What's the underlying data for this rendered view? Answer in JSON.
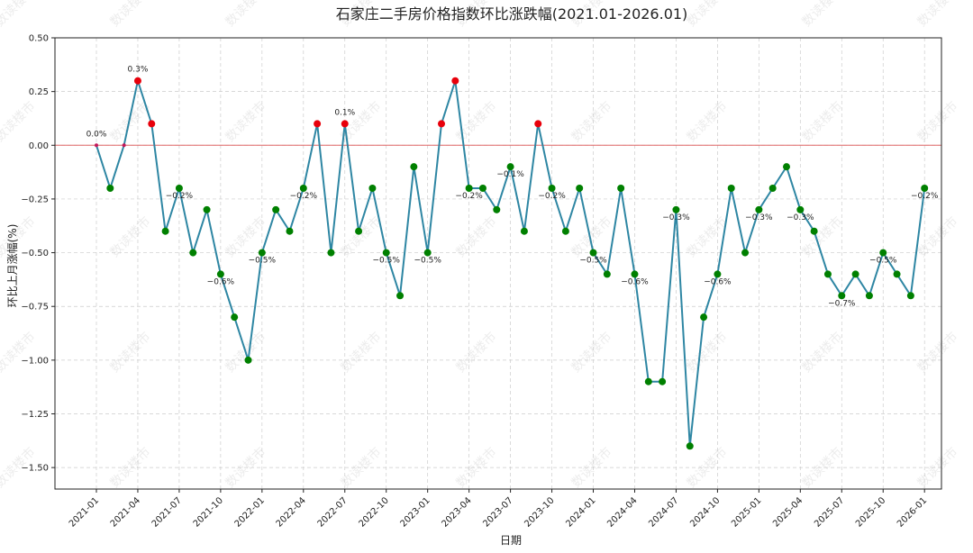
{
  "chart_data": {
    "type": "line",
    "title": "石家庄二手房价格指数环比涨跌幅(2021.01-2026.01)",
    "xlabel": "日期",
    "ylabel": "环比上月涨幅(%)",
    "ylim": [
      -1.6,
      0.5
    ],
    "yticks": [
      0.5,
      0.25,
      0.0,
      -0.25,
      -0.5,
      -0.75,
      -1.0,
      -1.25,
      -1.5
    ],
    "ytick_labels": [
      "0.50",
      "0.25",
      "0.00",
      "−0.25",
      "−0.50",
      "−0.75",
      "−1.00",
      "−1.25",
      "−1.50"
    ],
    "xtick_labels": [
      "2021-01",
      "2021-04",
      "2021-07",
      "2021-10",
      "2022-01",
      "2022-04",
      "2022-07",
      "2022-10",
      "2023-01",
      "2023-04",
      "2023-07",
      "2023-10",
      "2024-01",
      "2024-04",
      "2024-07",
      "2024-10",
      "2025-01",
      "2025-04",
      "2025-07",
      "2025-10",
      "2026-01"
    ],
    "grid": true,
    "reference_line": 0,
    "watermark": "数读楼市",
    "series": [
      {
        "x": [
          "2021-01",
          "2021-02",
          "2021-03",
          "2021-04",
          "2021-05",
          "2021-06",
          "2021-07",
          "2021-08",
          "2021-09",
          "2021-10",
          "2021-11",
          "2021-12",
          "2022-01",
          "2022-02",
          "2022-03",
          "2022-04",
          "2022-05",
          "2022-06",
          "2022-07",
          "2022-08",
          "2022-09",
          "2022-10",
          "2022-11",
          "2022-12",
          "2023-01",
          "2023-02",
          "2023-03",
          "2023-04",
          "2023-05",
          "2023-06",
          "2023-07",
          "2023-08",
          "2023-09",
          "2023-10",
          "2023-11",
          "2023-12",
          "2024-01",
          "2024-02",
          "2024-03",
          "2024-04",
          "2024-05",
          "2024-06",
          "2024-07",
          "2024-08",
          "2024-09",
          "2024-10",
          "2024-11",
          "2024-12",
          "2025-01",
          "2025-02",
          "2025-03",
          "2025-04",
          "2025-05",
          "2025-06",
          "2025-07",
          "2025-08",
          "2025-09",
          "2025-10",
          "2025-11",
          "2025-12",
          "2026-01"
        ],
        "values": [
          0.0,
          -0.2,
          0.0,
          0.3,
          0.1,
          -0.4,
          -0.2,
          -0.5,
          -0.3,
          -0.6,
          -0.8,
          -1.0,
          -0.5,
          -0.3,
          -0.4,
          -0.2,
          0.1,
          -0.5,
          0.1,
          -0.4,
          -0.2,
          -0.5,
          -0.7,
          -0.1,
          -0.5,
          0.1,
          0.3,
          -0.2,
          -0.2,
          -0.3,
          -0.1,
          -0.4,
          0.1,
          -0.2,
          -0.4,
          -0.2,
          -0.5,
          -0.6,
          -0.2,
          -0.6,
          -1.1,
          -1.1,
          -0.3,
          -1.4,
          -0.8,
          -0.6,
          -0.2,
          -0.5,
          -0.3,
          -0.2,
          -0.1,
          -0.3,
          -0.4,
          -0.6,
          -0.7,
          -0.6,
          -0.7,
          -0.5,
          -0.6,
          -0.7,
          -0.2
        ]
      }
    ],
    "data_labels": [
      {
        "x": "2021-01",
        "value": 0.0,
        "text": "0.0%",
        "position": "above"
      },
      {
        "x": "2021-04",
        "value": 0.3,
        "text": "0.3%",
        "position": "above"
      },
      {
        "x": "2021-07",
        "value": -0.2,
        "text": "−0.2%",
        "position": "below"
      },
      {
        "x": "2021-10",
        "value": -0.6,
        "text": "−0.6%",
        "position": "below"
      },
      {
        "x": "2022-01",
        "value": -0.5,
        "text": "−0.5%",
        "position": "below"
      },
      {
        "x": "2022-04",
        "value": -0.2,
        "text": "−0.2%",
        "position": "below"
      },
      {
        "x": "2022-07",
        "value": 0.1,
        "text": "0.1%",
        "position": "above"
      },
      {
        "x": "2022-10",
        "value": -0.5,
        "text": "−0.5%",
        "position": "below"
      },
      {
        "x": "2023-01",
        "value": -0.5,
        "text": "−0.5%",
        "position": "below"
      },
      {
        "x": "2023-04",
        "value": -0.2,
        "text": "−0.2%",
        "position": "below"
      },
      {
        "x": "2023-07",
        "value": -0.1,
        "text": "−0.1%",
        "position": "below"
      },
      {
        "x": "2023-10",
        "value": -0.2,
        "text": "−0.2%",
        "position": "below"
      },
      {
        "x": "2024-01",
        "value": -0.5,
        "text": "−0.5%",
        "position": "below"
      },
      {
        "x": "2024-04",
        "value": -0.6,
        "text": "−0.6%",
        "position": "below"
      },
      {
        "x": "2024-07",
        "value": -0.3,
        "text": "−0.3%",
        "position": "below"
      },
      {
        "x": "2024-10",
        "value": -0.6,
        "text": "−0.6%",
        "position": "below"
      },
      {
        "x": "2025-01",
        "value": -0.3,
        "text": "−0.3%",
        "position": "below"
      },
      {
        "x": "2025-04",
        "value": -0.3,
        "text": "−0.3%",
        "position": "below"
      },
      {
        "x": "2025-07",
        "value": -0.7,
        "text": "−0.7%",
        "position": "below"
      },
      {
        "x": "2025-10",
        "value": -0.5,
        "text": "−0.5%",
        "position": "below"
      },
      {
        "x": "2026-01",
        "value": -0.2,
        "text": "−0.2%",
        "position": "below"
      }
    ],
    "colors": {
      "line": "#2e86a3",
      "up": "#e8000b",
      "down": "#008000",
      "flat": "#c2185b",
      "zero_line": "#e06666",
      "grid": "#cccccc"
    }
  }
}
